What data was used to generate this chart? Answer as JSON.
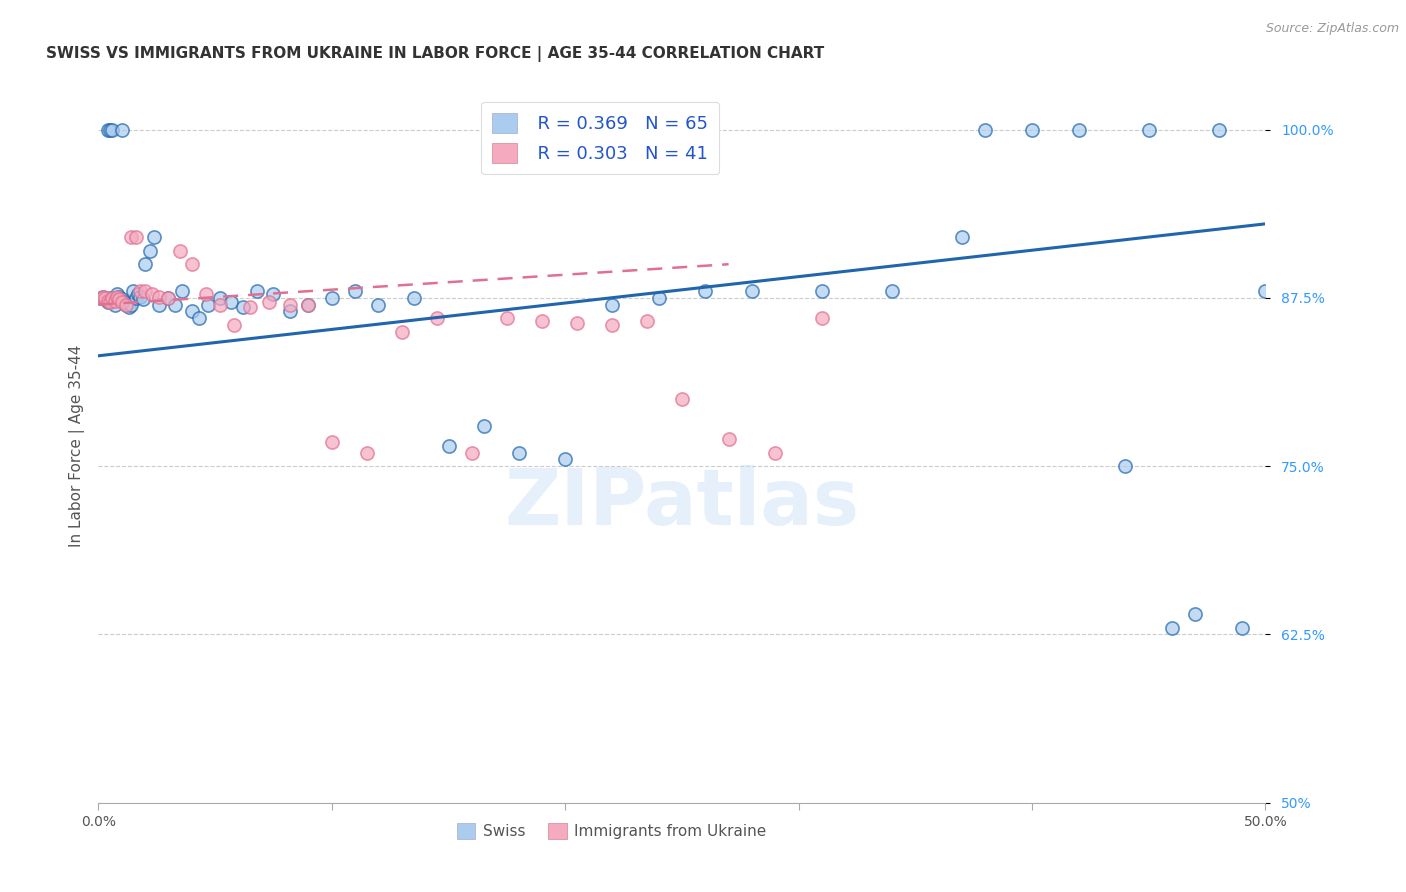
{
  "title": "SWISS VS IMMIGRANTS FROM UKRAINE IN LABOR FORCE | AGE 35-44 CORRELATION CHART",
  "source": "Source: ZipAtlas.com",
  "ylabel": "In Labor Force | Age 35-44",
  "xlim": [
    0.0,
    0.5
  ],
  "ylim": [
    0.5,
    1.03
  ],
  "xticks": [
    0.0,
    0.1,
    0.2,
    0.3,
    0.4,
    0.5
  ],
  "yticks": [
    0.5,
    0.625,
    0.75,
    0.875,
    1.0
  ],
  "ytick_labels": [
    "50%",
    "62.5%",
    "75.0%",
    "87.5%",
    "100.0%"
  ],
  "swiss_color": "#aaccee",
  "ukraine_color": "#f5aabf",
  "swiss_line_color": "#2166ac",
  "ukraine_line_color": "#e07090",
  "background_color": "#ffffff",
  "grid_color": "#cccccc",
  "legend_R_swiss": "R = 0.369",
  "legend_N_swiss": "N = 65",
  "legend_R_ukraine": "R = 0.303",
  "legend_N_ukraine": "N = 41",
  "swiss_x": [
    0.001,
    0.002,
    0.003,
    0.004,
    0.004,
    0.005,
    0.005,
    0.006,
    0.006,
    0.007,
    0.008,
    0.009,
    0.01,
    0.01,
    0.011,
    0.012,
    0.013,
    0.014,
    0.015,
    0.016,
    0.017,
    0.018,
    0.019,
    0.02,
    0.022,
    0.024,
    0.026,
    0.03,
    0.033,
    0.036,
    0.04,
    0.043,
    0.047,
    0.052,
    0.057,
    0.062,
    0.068,
    0.075,
    0.082,
    0.09,
    0.1,
    0.11,
    0.12,
    0.135,
    0.15,
    0.165,
    0.18,
    0.2,
    0.22,
    0.24,
    0.26,
    0.28,
    0.31,
    0.34,
    0.37,
    0.38,
    0.4,
    0.42,
    0.44,
    0.45,
    0.46,
    0.47,
    0.48,
    0.49,
    0.5
  ],
  "swiss_y": [
    0.875,
    0.876,
    0.874,
    0.872,
    1.0,
    0.875,
    1.0,
    0.873,
    1.0,
    0.87,
    0.878,
    0.876,
    0.874,
    1.0,
    0.872,
    0.87,
    0.868,
    0.87,
    0.88,
    0.875,
    0.878,
    0.876,
    0.874,
    0.9,
    0.91,
    0.92,
    0.87,
    0.875,
    0.87,
    0.88,
    0.865,
    0.86,
    0.87,
    0.875,
    0.872,
    0.868,
    0.88,
    0.878,
    0.865,
    0.87,
    0.875,
    0.88,
    0.87,
    0.875,
    0.765,
    0.78,
    0.76,
    0.755,
    0.87,
    0.875,
    0.88,
    0.88,
    0.88,
    0.88,
    0.92,
    1.0,
    1.0,
    1.0,
    0.75,
    1.0,
    0.63,
    0.64,
    1.0,
    0.63,
    0.88
  ],
  "ukraine_x": [
    0.001,
    0.002,
    0.003,
    0.004,
    0.005,
    0.006,
    0.007,
    0.008,
    0.009,
    0.01,
    0.012,
    0.014,
    0.016,
    0.018,
    0.02,
    0.023,
    0.026,
    0.03,
    0.035,
    0.04,
    0.046,
    0.052,
    0.058,
    0.065,
    0.073,
    0.082,
    0.09,
    0.1,
    0.115,
    0.13,
    0.145,
    0.16,
    0.175,
    0.19,
    0.205,
    0.22,
    0.235,
    0.25,
    0.27,
    0.29,
    0.31
  ],
  "ukraine_y": [
    0.875,
    0.876,
    0.875,
    0.873,
    0.872,
    0.875,
    0.873,
    0.876,
    0.874,
    0.872,
    0.87,
    0.92,
    0.92,
    0.88,
    0.88,
    0.878,
    0.876,
    0.875,
    0.91,
    0.9,
    0.878,
    0.87,
    0.855,
    0.868,
    0.872,
    0.87,
    0.87,
    0.768,
    0.76,
    0.85,
    0.86,
    0.76,
    0.86,
    0.858,
    0.856,
    0.855,
    0.858,
    0.8,
    0.77,
    0.76,
    0.86
  ],
  "watermark": "ZIPatlas",
  "title_fontsize": 11,
  "axis_label_fontsize": 11,
  "tick_fontsize": 10,
  "legend_fontsize": 13
}
